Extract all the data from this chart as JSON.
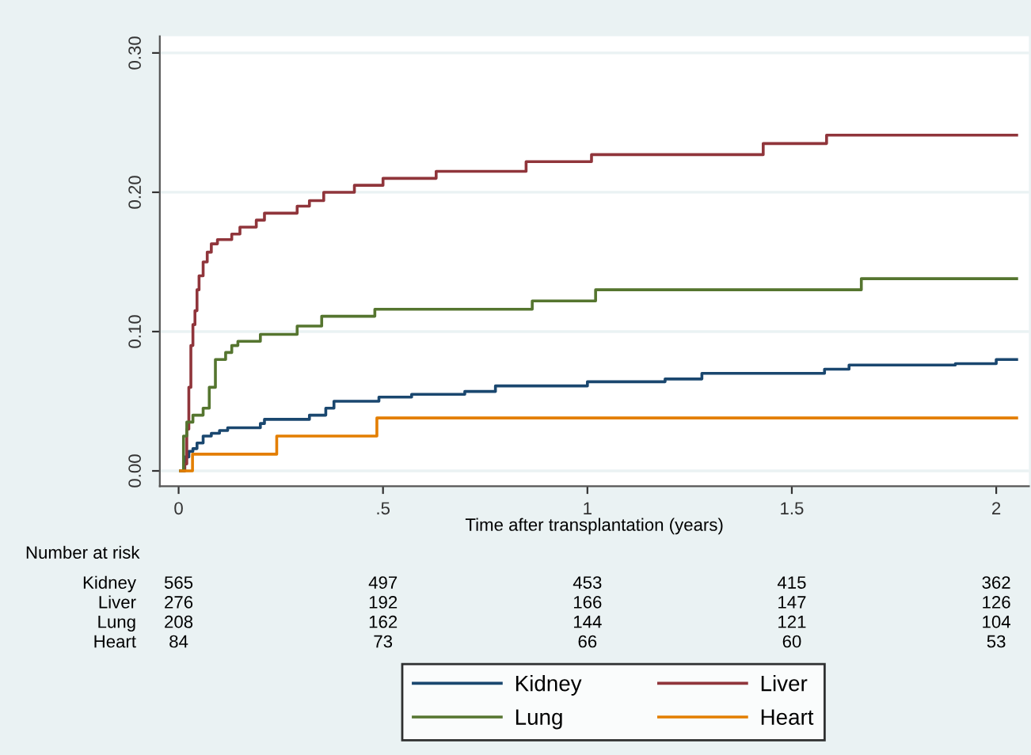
{
  "chart_data": {
    "type": "step",
    "xlabel": "Time after transplantation (years)",
    "xlim": [
      -0.046,
      2.08
    ],
    "xticks": [
      0,
      {
        "value": 0.5,
        "label": ".5"
      },
      1,
      1.5,
      2
    ],
    "ylim": [
      -0.011,
      0.312
    ],
    "yticks": [
      {
        "value": 0,
        "label": "0.00"
      },
      {
        "value": 0.1,
        "label": "0.10"
      },
      {
        "value": 0.2,
        "label": "0.20"
      },
      {
        "value": 0.3,
        "label": "0.30"
      }
    ],
    "grid": "y",
    "legend": "bottom",
    "series": [
      {
        "name": "Kidney",
        "color": "#1a476f",
        "x": [
          0.005,
          0.015,
          0.025,
          0.035,
          0.045,
          0.06,
          0.08,
          0.1,
          0.12,
          0.2,
          0.21,
          0.32,
          0.36,
          0.38,
          0.49,
          0.57,
          0.7,
          0.775,
          1.0,
          1.19,
          1.28,
          1.58,
          1.64,
          1.9,
          2.0,
          2.05
        ],
        "values": [
          0,
          0.01,
          0.014,
          0.016,
          0.02,
          0.025,
          0.027,
          0.029,
          0.031,
          0.034,
          0.037,
          0.04,
          0.045,
          0.05,
          0.053,
          0.055,
          0.057,
          0.061,
          0.064,
          0.066,
          0.07,
          0.073,
          0.076,
          0.077,
          0.08,
          0.08
        ]
      },
      {
        "name": "Liver",
        "color": "#90353b",
        "x": [
          0.008,
          0.015,
          0.02,
          0.025,
          0.03,
          0.035,
          0.04,
          0.045,
          0.05,
          0.06,
          0.07,
          0.08,
          0.095,
          0.13,
          0.15,
          0.19,
          0.21,
          0.29,
          0.32,
          0.355,
          0.43,
          0.5,
          0.63,
          0.85,
          1.01,
          1.43,
          1.585,
          2.05
        ],
        "values": [
          0,
          0.005,
          0.03,
          0.06,
          0.09,
          0.105,
          0.115,
          0.13,
          0.14,
          0.15,
          0.157,
          0.163,
          0.166,
          0.17,
          0.175,
          0.18,
          0.185,
          0.19,
          0.194,
          0.2,
          0.205,
          0.21,
          0.215,
          0.222,
          0.227,
          0.235,
          0.241,
          0.241
        ]
      },
      {
        "name": "Lung",
        "color": "#55752f",
        "x": [
          0.005,
          0.012,
          0.02,
          0.035,
          0.06,
          0.075,
          0.09,
          0.115,
          0.13,
          0.145,
          0.2,
          0.29,
          0.35,
          0.48,
          0.865,
          1.02,
          1.67,
          2.05
        ],
        "values": [
          0,
          0.025,
          0.035,
          0.04,
          0.045,
          0.06,
          0.08,
          0.085,
          0.09,
          0.093,
          0.098,
          0.104,
          0.111,
          0.116,
          0.122,
          0.13,
          0.138,
          0.138
        ]
      },
      {
        "name": "Heart",
        "color": "#e37e00",
        "x": [
          0.005,
          0.034,
          0.24,
          0.485,
          2.05
        ],
        "values": [
          0,
          0.012,
          0.025,
          0.038,
          0.038
        ]
      }
    ],
    "annotations": [
      "Number at risk",
      "Kidney",
      "565",
      "497",
      "453",
      "415",
      "362",
      "Liver",
      "276",
      "192",
      "166",
      "147",
      "126",
      "Lung",
      "208",
      "162",
      "144",
      "121",
      "104",
      "Heart",
      "84",
      "73",
      "66",
      "60",
      "53"
    ]
  }
}
